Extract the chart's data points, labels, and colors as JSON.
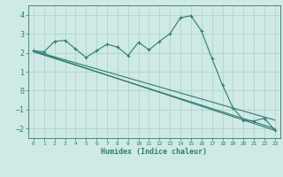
{
  "bg_color": "#cfe9e5",
  "grid_color": "#b0d4d0",
  "line_color": "#2e7d72",
  "xlabel": "Humidex (Indice chaleur)",
  "xlim": [
    -0.5,
    23.5
  ],
  "ylim": [
    -2.5,
    4.5
  ],
  "yticks": [
    -2,
    -1,
    0,
    1,
    2,
    3,
    4
  ],
  "xticks": [
    0,
    1,
    2,
    3,
    4,
    5,
    6,
    7,
    8,
    9,
    10,
    11,
    12,
    13,
    14,
    15,
    16,
    17,
    18,
    19,
    20,
    21,
    22,
    23
  ],
  "curve_x": [
    0,
    1,
    2,
    3,
    4,
    5,
    6,
    7,
    8,
    9,
    10,
    11,
    12,
    13,
    14,
    15,
    16,
    17,
    18,
    19,
    20,
    21,
    22,
    23
  ],
  "curve_y": [
    2.1,
    2.05,
    2.6,
    2.65,
    2.2,
    1.75,
    2.1,
    2.45,
    2.3,
    1.85,
    2.55,
    2.15,
    2.6,
    3.0,
    3.85,
    3.95,
    3.15,
    1.7,
    0.3,
    -0.9,
    -1.55,
    -1.6,
    -1.45,
    -2.1
  ],
  "line1_x": [
    0,
    23
  ],
  "line1_y": [
    2.1,
    -2.1
  ],
  "line2_x": [
    0,
    23
  ],
  "line2_y": [
    2.1,
    -1.55
  ],
  "line3_x": [
    0,
    23
  ],
  "line3_y": [
    2.05,
    -2.0
  ]
}
